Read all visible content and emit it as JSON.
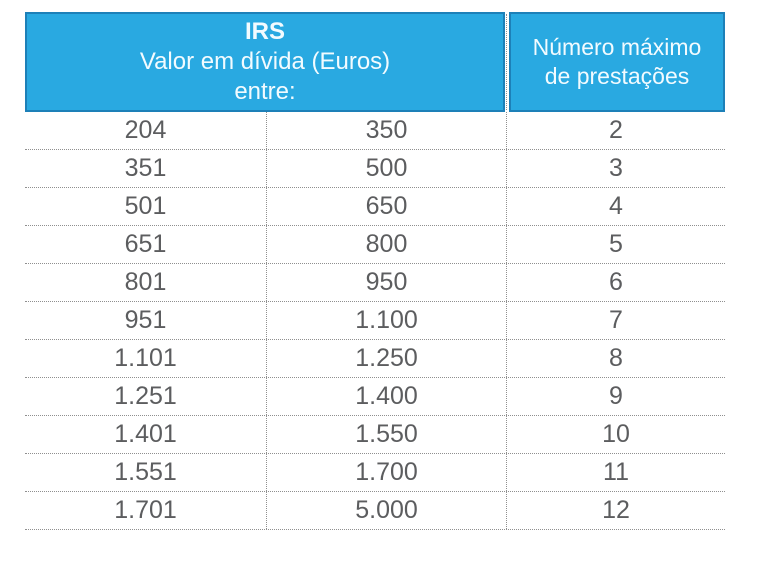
{
  "page": {
    "background": "#ffffff"
  },
  "colors": {
    "header_bg": "#29a9e1",
    "header_border": "#1d80b8",
    "header_text": "#f2fbff",
    "body_text": "#5c5d5f",
    "dotted_line": "#8f8f8f"
  },
  "table": {
    "header": {
      "left": {
        "title": "IRS",
        "subtitle": "Valor em dívida (Euros)",
        "range_label": "entre:"
      },
      "right": {
        "line1": "Número máximo",
        "line2": "de prestações"
      }
    },
    "rows": [
      {
        "from": "204",
        "to": "350",
        "installments": "2"
      },
      {
        "from": "351",
        "to": "500",
        "installments": "3"
      },
      {
        "from": "501",
        "to": "650",
        "installments": "4"
      },
      {
        "from": "651",
        "to": "800",
        "installments": "5"
      },
      {
        "from": "801",
        "to": "950",
        "installments": "6"
      },
      {
        "from": "951",
        "to": "1.100",
        "installments": "7"
      },
      {
        "from": "1.101",
        "to": "1.250",
        "installments": "8"
      },
      {
        "from": "1.251",
        "to": "1.400",
        "installments": "9"
      },
      {
        "from": "1.401",
        "to": "1.550",
        "installments": "10"
      },
      {
        "from": "1.551",
        "to": "1.700",
        "installments": "11"
      },
      {
        "from": "1.701",
        "to": "5.000",
        "installments": "12"
      }
    ]
  },
  "chart_data": {
    "type": "table",
    "title": "IRS — Valor em dívida (Euros) entre / Número máximo de prestações",
    "columns": [
      "Valor em dívida de (Euros)",
      "Valor em dívida até (Euros)",
      "Número máximo de prestações"
    ],
    "rows": [
      [
        204,
        350,
        2
      ],
      [
        351,
        500,
        3
      ],
      [
        501,
        650,
        4
      ],
      [
        651,
        800,
        5
      ],
      [
        801,
        950,
        6
      ],
      [
        951,
        1100,
        7
      ],
      [
        1101,
        1250,
        8
      ],
      [
        1251,
        1400,
        9
      ],
      [
        1401,
        1550,
        10
      ],
      [
        1551,
        1700,
        11
      ],
      [
        1701,
        5000,
        12
      ]
    ]
  }
}
